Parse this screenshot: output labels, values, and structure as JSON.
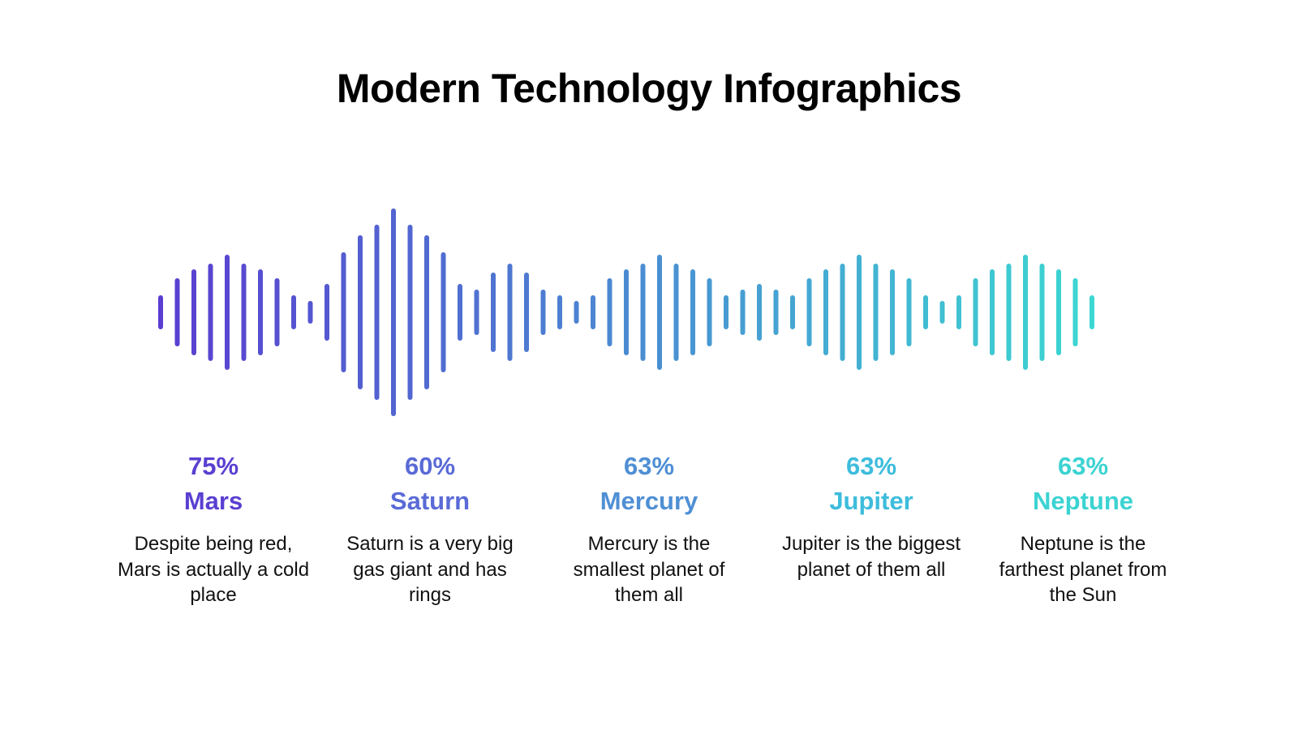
{
  "title": "Modern Technology Infographics",
  "wave": {
    "gradient_start": "#5a3dd1",
    "gradient_end": "#3bd8d2"
  },
  "items": [
    {
      "percent": "75%",
      "name": "Mars",
      "description": "Despite being red, Mars is actually a cold place",
      "color": "#5a3fd1"
    },
    {
      "percent": "60%",
      "name": "Saturn",
      "description": "Saturn is a very big gas giant and has rings",
      "color": "#5a6ad6"
    },
    {
      "percent": "63%",
      "name": "Mercury",
      "description": "Mercury is the smallest planet of them all",
      "color": "#4f8fd4"
    },
    {
      "percent": "63%",
      "name": "Jupiter",
      "description": "Jupiter is the biggest planet of them all",
      "color": "#3dbcdc"
    },
    {
      "percent": "63%",
      "name": "Neptune",
      "description": "Neptune is the farthest planet from the Sun",
      "color": "#3bd3d2"
    }
  ]
}
